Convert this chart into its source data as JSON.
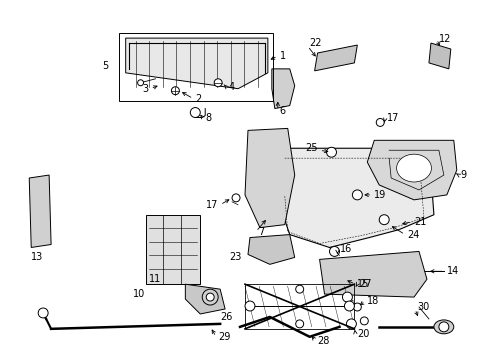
{
  "bg_color": "#ffffff",
  "fig_width": 4.89,
  "fig_height": 3.6,
  "dpi": 100,
  "font_size": 7.0,
  "font_color": "#000000",
  "line_color": "#000000",
  "line_width": 0.7
}
